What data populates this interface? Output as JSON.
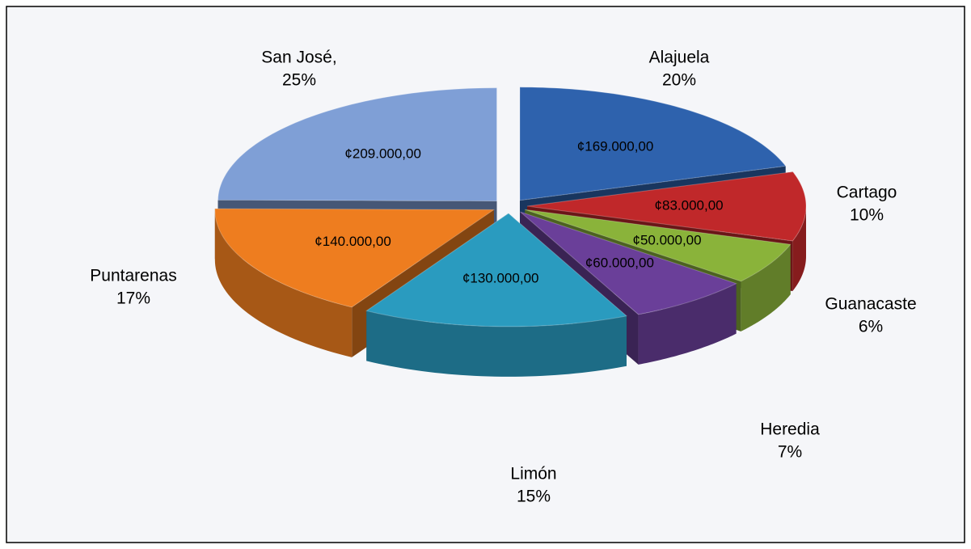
{
  "chart_data": {
    "type": "pie",
    "categories": [
      "Alajuela",
      "Cartago",
      "Guanacaste",
      "Heredia",
      "Limón",
      "Puntarenas",
      "San José,"
    ],
    "values": [
      169000,
      83000,
      50000,
      60000,
      130000,
      140000,
      209000
    ],
    "value_labels": [
      "¢169.000,00",
      "¢83.000,00",
      "¢50.000,00",
      "¢60.000,00",
      "¢130.000,00",
      "¢140.000,00",
      "¢209.000,00"
    ],
    "percentages": [
      20,
      10,
      6,
      7,
      15,
      17,
      25
    ],
    "percentage_labels": [
      "20%",
      "10%",
      "6%",
      "7%",
      "15%",
      "17%",
      "25%"
    ],
    "colors": [
      "#2e62ad",
      "#c0282a",
      "#8ab33a",
      "#6a3f99",
      "#2a9bbf",
      "#ee7d1f",
      "#7f9fd6"
    ]
  }
}
